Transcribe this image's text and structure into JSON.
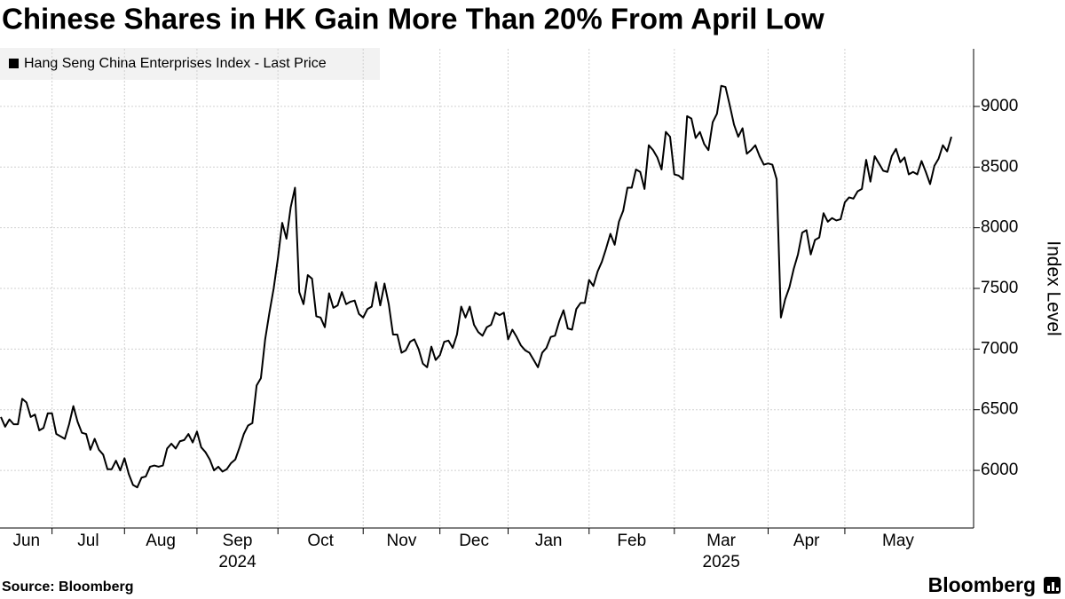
{
  "chart_data": {
    "type": "line",
    "title": "Chinese Shares in HK Gain More Than 20% From April Low",
    "y_label": "Index Level",
    "source": "Source: Bloomberg",
    "brand": "Bloomberg",
    "ylim": [
      5525,
      9475
    ],
    "yticks": [
      6000,
      6500,
      7000,
      7500,
      8000,
      8500,
      9000
    ],
    "y_axis_side": "right",
    "grid": true,
    "categories": [
      "Jun",
      null,
      null,
      null,
      null,
      null,
      null,
      null,
      null,
      null,
      null,
      null,
      "Jul",
      null,
      null,
      null,
      null,
      null,
      null,
      null,
      null,
      null,
      null,
      null,
      null,
      null,
      null,
      null,
      null,
      "Aug",
      null,
      null,
      null,
      null,
      null,
      null,
      null,
      null,
      null,
      null,
      null,
      null,
      null,
      null,
      null,
      null,
      "Sep",
      null,
      null,
      null,
      null,
      null,
      null,
      null,
      null,
      null,
      null,
      null,
      null,
      null,
      null,
      null,
      null,
      null,
      null,
      "Oct",
      null,
      null,
      null,
      null,
      null,
      null,
      null,
      null,
      null,
      null,
      null,
      null,
      null,
      null,
      null,
      null,
      null,
      null,
      null,
      "Nov",
      null,
      null,
      null,
      null,
      null,
      null,
      null,
      null,
      null,
      null,
      null,
      null,
      null,
      null,
      null,
      null,
      null,
      "Dec",
      null,
      null,
      null,
      null,
      null,
      null,
      null,
      null,
      null,
      null,
      null,
      null,
      null,
      null,
      null,
      "Jan",
      null,
      null,
      null,
      null,
      null,
      null,
      null,
      null,
      null,
      null,
      null,
      null,
      null,
      null,
      null,
      null,
      null,
      null,
      "Feb",
      null,
      null,
      null,
      null,
      null,
      null,
      null,
      null,
      null,
      null,
      null,
      null,
      null,
      null,
      null,
      null,
      null,
      null,
      null,
      "Mar",
      null,
      null,
      null,
      null,
      null,
      null,
      null,
      null,
      null,
      null,
      null,
      null,
      null,
      null,
      null,
      null,
      null,
      null,
      null,
      null,
      null,
      "Apr",
      null,
      null,
      null,
      null,
      null,
      null,
      null,
      null,
      null,
      null,
      null,
      null,
      null,
      null,
      null,
      null,
      null,
      "May",
      null,
      null,
      null,
      null,
      null,
      null,
      null,
      null,
      null,
      null,
      null,
      null,
      null,
      null,
      null,
      null,
      null,
      null,
      null,
      null,
      null,
      null,
      null,
      null,
      null
    ],
    "x_groups": [
      {
        "label": "2024",
        "category": "Sep"
      },
      {
        "label": "2025",
        "category": "Mar"
      }
    ],
    "series": [
      {
        "name": "Hang Seng China Enterprises Index - Last Price",
        "color": "#000000",
        "values": [
          6440,
          6360,
          6420,
          6380,
          6380,
          6590,
          6560,
          6440,
          6460,
          6330,
          6350,
          6470,
          6470,
          6300,
          6280,
          6260,
          6380,
          6530,
          6400,
          6310,
          6300,
          6170,
          6260,
          6170,
          6130,
          6010,
          6010,
          6080,
          6000,
          6100,
          5970,
          5880,
          5860,
          5940,
          5950,
          6030,
          6040,
          6030,
          6040,
          6180,
          6220,
          6180,
          6240,
          6250,
          6300,
          6230,
          6320,
          6190,
          6150,
          6090,
          6000,
          6030,
          5990,
          6010,
          6060,
          6090,
          6190,
          6300,
          6370,
          6390,
          6700,
          6760,
          7080,
          7300,
          7500,
          7750,
          8040,
          7910,
          8170,
          8330,
          7470,
          7370,
          7610,
          7580,
          7270,
          7260,
          7180,
          7460,
          7340,
          7360,
          7470,
          7370,
          7390,
          7400,
          7290,
          7260,
          7330,
          7350,
          7550,
          7360,
          7540,
          7370,
          7120,
          7120,
          6970,
          6990,
          7060,
          7080,
          7000,
          6880,
          6850,
          7020,
          6910,
          6950,
          7060,
          7070,
          7010,
          7120,
          7350,
          7260,
          7350,
          7200,
          7140,
          7110,
          7180,
          7200,
          7300,
          7280,
          7300,
          7080,
          7160,
          7100,
          7030,
          6990,
          6970,
          6910,
          6850,
          6970,
          7010,
          7100,
          7110,
          7230,
          7320,
          7170,
          7160,
          7330,
          7380,
          7380,
          7570,
          7520,
          7640,
          7720,
          7830,
          7950,
          7860,
          8050,
          8140,
          8330,
          8330,
          8480,
          8460,
          8320,
          8680,
          8640,
          8580,
          8480,
          8790,
          8750,
          8440,
          8430,
          8400,
          8920,
          8900,
          8740,
          8790,
          8690,
          8640,
          8870,
          8940,
          9170,
          9160,
          9010,
          8850,
          8750,
          8820,
          8610,
          8640,
          8680,
          8590,
          8520,
          8530,
          8520,
          8400,
          7260,
          7410,
          7510,
          7660,
          7780,
          7960,
          7980,
          7780,
          7900,
          7920,
          8120,
          8050,
          8080,
          8060,
          8070,
          8210,
          8250,
          8240,
          8300,
          8320,
          8560,
          8380,
          8590,
          8530,
          8470,
          8460,
          8590,
          8650,
          8540,
          8580,
          8440,
          8460,
          8440,
          8550,
          8460,
          8360,
          8510,
          8570,
          8680,
          8630,
          8750
        ]
      }
    ]
  }
}
